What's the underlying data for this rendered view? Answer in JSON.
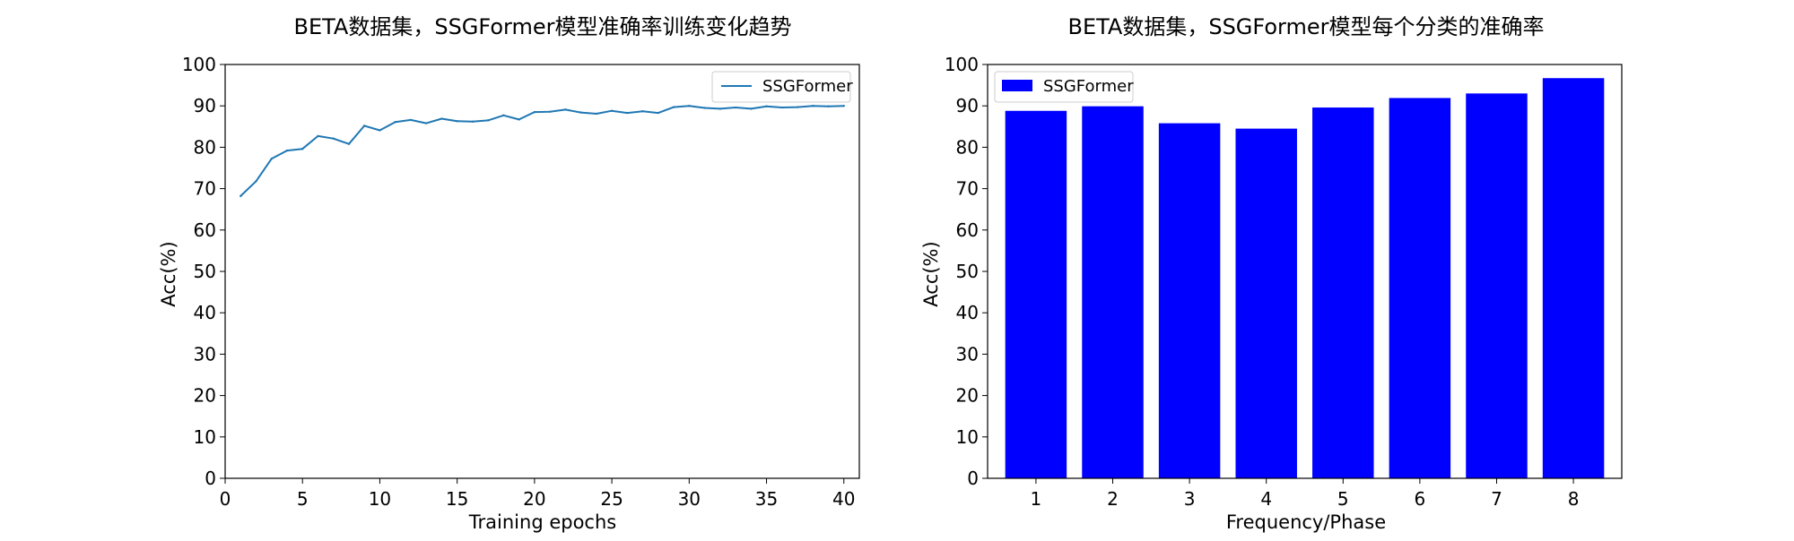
{
  "chart_data": [
    {
      "type": "line",
      "title": "BETA数据集，SSGFormer模型准确率训练变化趋势",
      "xlabel": "Training epochs",
      "ylabel": "Acc(%)",
      "xlim": [
        0,
        41
      ],
      "ylim": [
        0,
        100
      ],
      "xticks": [
        0,
        5,
        10,
        15,
        20,
        25,
        30,
        35,
        40
      ],
      "yticks": [
        0,
        10,
        20,
        30,
        40,
        50,
        60,
        70,
        80,
        90,
        100
      ],
      "legend_position": "upper right",
      "grid": false,
      "series": [
        {
          "name": "SSGFormer",
          "color": "#1f77b4",
          "x": [
            1,
            2,
            3,
            4,
            5,
            6,
            7,
            8,
            9,
            10,
            11,
            12,
            13,
            14,
            15,
            16,
            17,
            18,
            19,
            20,
            21,
            22,
            23,
            24,
            25,
            26,
            27,
            28,
            29,
            30,
            31,
            32,
            33,
            34,
            35,
            36,
            37,
            38,
            39,
            40
          ],
          "values": [
            68.2,
            71.8,
            77.2,
            79.2,
            79.6,
            82.7,
            82.1,
            80.8,
            85.2,
            84.1,
            86.1,
            86.6,
            85.8,
            86.9,
            86.3,
            86.2,
            86.5,
            87.7,
            86.7,
            88.5,
            88.6,
            89.1,
            88.4,
            88.1,
            88.8,
            88.3,
            88.7,
            88.3,
            89.7,
            90.0,
            89.5,
            89.3,
            89.6,
            89.3,
            89.9,
            89.6,
            89.7,
            90.0,
            89.9,
            90.0
          ]
        }
      ]
    },
    {
      "type": "bar",
      "title": "BETA数据集，SSGFormer模型每个分类的准确率",
      "xlabel": "Frequency/Phase",
      "ylabel": "Acc(%)",
      "ylim": [
        0,
        100
      ],
      "yticks": [
        0,
        10,
        20,
        30,
        40,
        50,
        60,
        70,
        80,
        90,
        100
      ],
      "legend_position": "upper left",
      "grid": false,
      "categories": [
        "1",
        "2",
        "3",
        "4",
        "5",
        "6",
        "7",
        "8"
      ],
      "series": [
        {
          "name": "SSGFormer",
          "color": "#0000ff",
          "values": [
            88.8,
            89.9,
            85.8,
            84.5,
            89.6,
            91.9,
            93.0,
            96.7
          ]
        }
      ]
    }
  ]
}
